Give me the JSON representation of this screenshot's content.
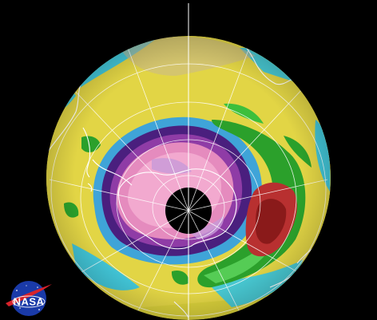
{
  "map": {
    "subject": "ozone-hole-globe",
    "projection": "orthographic-south-polar",
    "colors": {
      "space": "#000000",
      "ozone_very_high": "#8b1a1a",
      "ozone_high": "#c03a3a",
      "ozone_elevated": "#1f9a1f",
      "ozone_above_normal": "#3fbf3f",
      "ozone_normal_high": "#b8c010",
      "ozone_normal": "#e0d830",
      "ozone_moderate": "#d9c85a",
      "ozone_below_normal": "#3bc5d5",
      "ozone_low": "#5a2a8a",
      "ozone_very_low": "#8a3a9a",
      "ozone_hole": "#e890c0",
      "ozone_hole_core": "#f0a8cc",
      "no_data_pole": "#000000",
      "graticule": "#ffffff",
      "coastline": "#ffffff"
    }
  },
  "logo": {
    "name": "nasa-meatball-logo",
    "text": "NASA",
    "colors": {
      "circle": "#1a3aa8",
      "chevron": "#d8222a",
      "text": "#ffffff"
    }
  }
}
